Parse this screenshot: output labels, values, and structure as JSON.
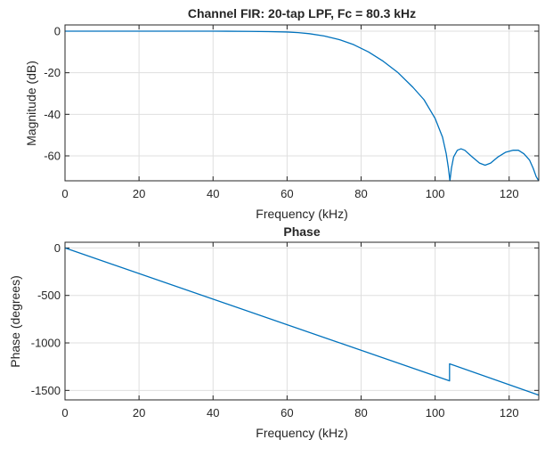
{
  "chart_data": [
    {
      "type": "line",
      "title": "Channel FIR: 20-tap LPF, Fc = 80.3 kHz",
      "xlabel": "Frequency (kHz)",
      "ylabel": "Magnitude (dB)",
      "xlim": [
        0,
        128
      ],
      "ylim": [
        -72,
        3
      ],
      "xticks": [
        0,
        20,
        40,
        60,
        80,
        100,
        120
      ],
      "yticks": [
        0,
        -20,
        -40,
        -60
      ],
      "grid": true,
      "series": [
        {
          "name": "Magnitude",
          "color": "#0072BD",
          "x": [
            0,
            20,
            40,
            50,
            55,
            60,
            63,
            66,
            70,
            74,
            78,
            82,
            86,
            90,
            94,
            97,
            100,
            102,
            103,
            103.6,
            104,
            104.4,
            105,
            106,
            107,
            108,
            110,
            112,
            113.5,
            115,
            117,
            119,
            121,
            122.5,
            124,
            125.5,
            126.5,
            127.3,
            128
          ],
          "y": [
            0,
            0,
            0,
            -0.1,
            -0.2,
            -0.4,
            -0.7,
            -1.2,
            -2.3,
            -4,
            -6.5,
            -10,
            -14.5,
            -20,
            -27,
            -33,
            -42,
            -51,
            -59,
            -66,
            -72,
            -66,
            -60.5,
            -57.3,
            -56.6,
            -57.3,
            -60.5,
            -63.5,
            -64.5,
            -63.5,
            -60.5,
            -58.3,
            -57.3,
            -57.3,
            -59,
            -62,
            -66,
            -70,
            -72
          ]
        }
      ]
    },
    {
      "type": "line",
      "title": "Phase",
      "xlabel": "Frequency (kHz)",
      "ylabel": "Phase (degrees)",
      "xlim": [
        0,
        128
      ],
      "ylim": [
        -1600,
        60
      ],
      "xticks": [
        0,
        20,
        40,
        60,
        80,
        100,
        120
      ],
      "yticks": [
        0,
        -500,
        -1000,
        -1500
      ],
      "grid": true,
      "series": [
        {
          "name": "Phase",
          "color": "#0072BD",
          "x": [
            0,
            103.9,
            103.9,
            128
          ],
          "y": [
            0,
            -1400,
            -1220,
            -1550
          ]
        }
      ]
    }
  ]
}
